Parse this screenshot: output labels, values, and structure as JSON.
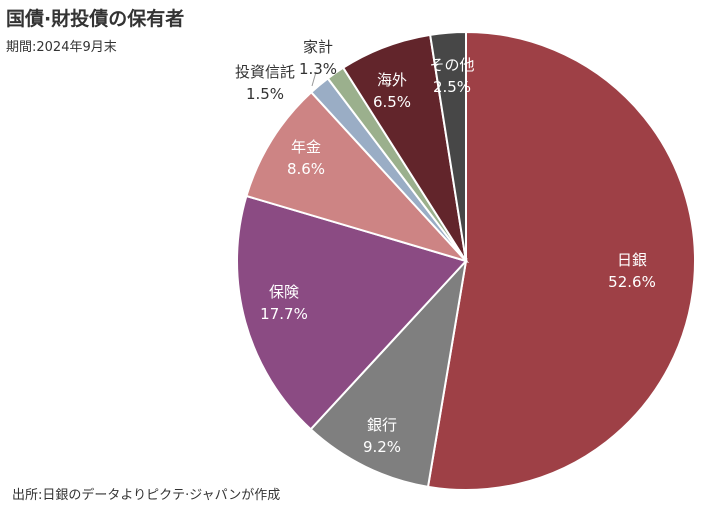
{
  "chart_data": {
    "type": "pie",
    "title": "国債·財投債の保有者",
    "subtitle": "期間:2024年9月末",
    "source": "出所:日銀のデータよりピクテ·ジャパンが作成",
    "start": "12 o'clock",
    "direction": "clockwise",
    "slices": [
      {
        "label": "日銀",
        "value": 52.6,
        "value_label": "52.6%",
        "color": "#9e4046"
      },
      {
        "label": "銀行",
        "value": 9.2,
        "value_label": "9.2%",
        "color": "#7f7f7f"
      },
      {
        "label": "保険",
        "value": 17.7,
        "value_label": "17.7%",
        "color": "#8b4b83"
      },
      {
        "label": "年金",
        "value": 8.6,
        "value_label": "8.6%",
        "color": "#cd8484"
      },
      {
        "label": "投資信託",
        "value": 1.5,
        "value_label": "1.5%",
        "color": "#9aadc5"
      },
      {
        "label": "家計",
        "value": 1.3,
        "value_label": "1.3%",
        "color": "#9bb08d"
      },
      {
        "label": "海外",
        "value": 6.5,
        "value_label": "6.5%",
        "color": "#62252b"
      },
      {
        "label": "その他",
        "value": 2.5,
        "value_label": "2.5%",
        "color": "#474747"
      }
    ]
  }
}
